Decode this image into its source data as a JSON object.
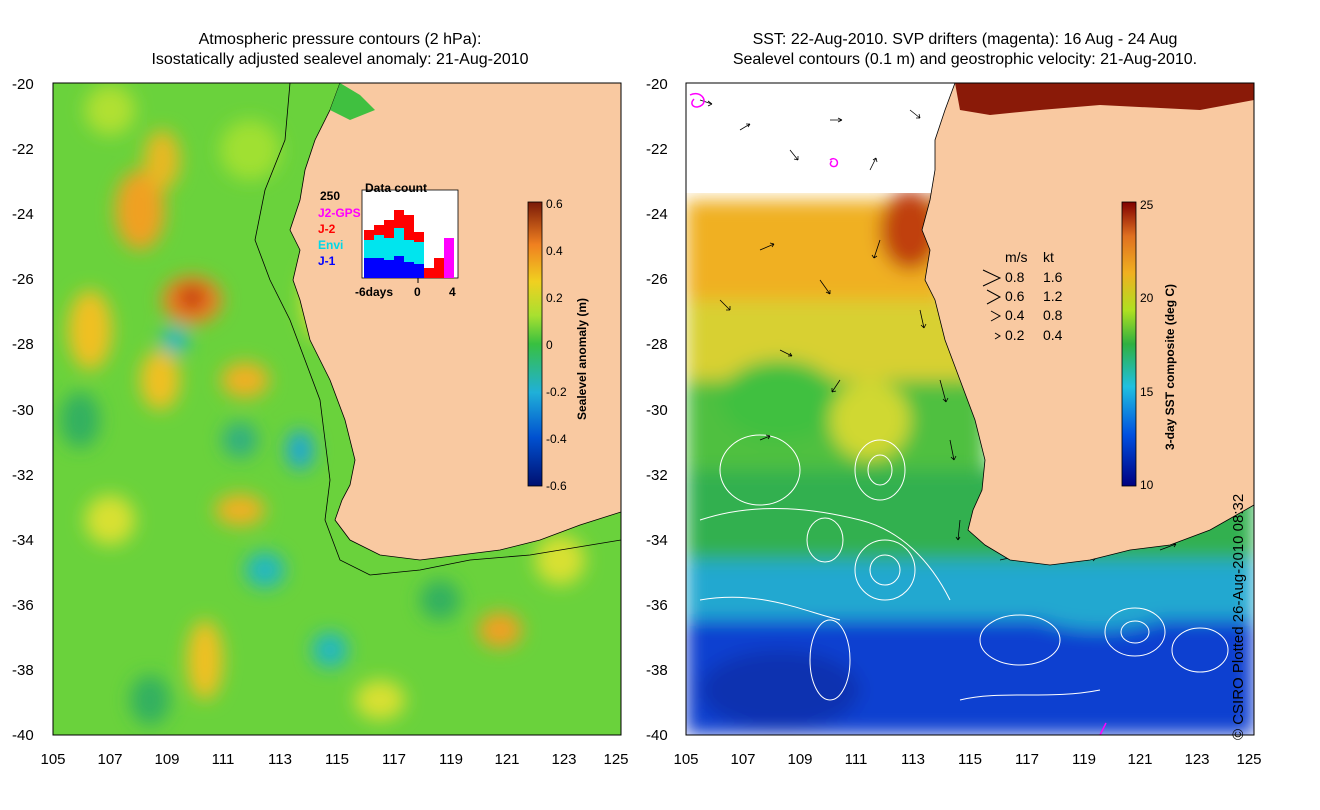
{
  "left_panel": {
    "title_line1": "Atmospheric pressure contours (2 hPa):",
    "title_line2": "Isostatically adjusted sealevel anomaly: 21-Aug-2010",
    "colorbar_label": "Sealevel anomaly (m)",
    "colorbar_ticks": [
      "0.6",
      "0.4",
      "0.2",
      "0",
      "-0.2",
      "-0.4",
      "-0.6"
    ],
    "inset": {
      "title": "Data count",
      "max_label": "250",
      "legend": [
        {
          "name": "J2-GPS",
          "color": "#ff00ff"
        },
        {
          "name": "J-2",
          "color": "#ff0000"
        },
        {
          "name": "Envi",
          "color": "#00e5ee"
        },
        {
          "name": "J-1",
          "color": "#0000ff"
        }
      ],
      "x_labels": [
        "-6days",
        "0",
        "4"
      ]
    }
  },
  "right_panel": {
    "title_line1": "SST: 22-Aug-2010. SVP drifters (magenta): 16 Aug - 24 Aug",
    "title_line2": "Sealevel contours (0.1 m) and geostrophic velocity: 21-Aug-2010.",
    "colorbar_label": "3-day SST composite (deg C)",
    "colorbar_ticks": [
      "25",
      "20",
      "15",
      "10"
    ],
    "velocity_legend": {
      "header_ms": "m/s",
      "header_kt": "kt",
      "rows": [
        {
          "ms": "0.8",
          "kt": "1.6"
        },
        {
          "ms": "0.6",
          "kt": "1.2"
        },
        {
          "ms": "0.4",
          "kt": "0.8"
        },
        {
          "ms": "0.2",
          "kt": "0.4"
        }
      ]
    }
  },
  "axes": {
    "y_labels": [
      "-20",
      "-22",
      "-24",
      "-26",
      "-28",
      "-30",
      "-32",
      "-34",
      "-36",
      "-38",
      "-40"
    ],
    "x_labels": [
      "105",
      "107",
      "109",
      "111",
      "113",
      "115",
      "117",
      "119",
      "121",
      "123",
      "125"
    ]
  },
  "credit": "© CSIRO Plotted 26-Aug-2010 08:32",
  "colors": {
    "land": "#f9c9a1",
    "ocean_green": "#5fcc3a",
    "bg": "#ffffff"
  }
}
